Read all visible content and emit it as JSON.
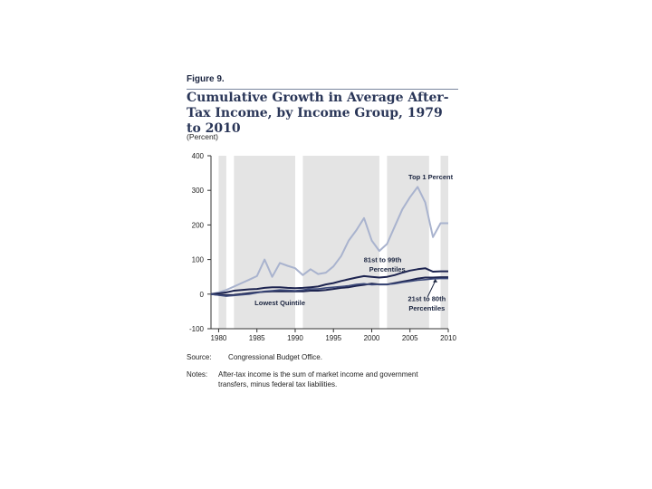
{
  "figure": {
    "label": "Figure 9.",
    "title": "Cumulative Growth in Average After-Tax Income, by Income Group, 1979 to 2010",
    "unit": "(Percent)",
    "source_label": "Source:",
    "source_text": "Congressional Budget Office.",
    "notes_label": "Notes:",
    "notes_text": "After-tax income is the sum of market income and government transfers, minus federal tax liabilities."
  },
  "colors": {
    "top1": "#a9b3ce",
    "p81_99": "#1d2450",
    "p21_80": "#1d2450",
    "lowest": "#3d4a7a",
    "recession": "#e4e4e4",
    "axis": "#333333"
  },
  "chart_data": {
    "type": "line",
    "title": "Cumulative Growth in Average After-Tax Income, by Income Group, 1979 to 2010",
    "xlabel": "",
    "ylabel": "(Percent)",
    "xlim": [
      1979,
      2010
    ],
    "ylim": [
      -100,
      400
    ],
    "x_ticks": [
      1980,
      1985,
      1990,
      1995,
      2000,
      2005,
      2010
    ],
    "y_ticks": [
      -100,
      0,
      100,
      200,
      300,
      400
    ],
    "grid": false,
    "shaded_periods": [
      [
        1980,
        1981
      ],
      [
        1982,
        1990
      ],
      [
        1991,
        2001
      ],
      [
        2002,
        2007.5
      ],
      [
        2009,
        2010
      ]
    ],
    "x": [
      1979,
      1980,
      1981,
      1982,
      1983,
      1984,
      1985,
      1986,
      1987,
      1988,
      1989,
      1990,
      1991,
      1992,
      1993,
      1994,
      1995,
      1996,
      1997,
      1998,
      1999,
      2000,
      2001,
      2002,
      2003,
      2004,
      2005,
      2006,
      2007,
      2008,
      2009,
      2010
    ],
    "series": [
      {
        "name": "Top 1 Percent",
        "color_key": "top1",
        "values": [
          0,
          5,
          12,
          22,
          32,
          42,
          52,
          100,
          50,
          90,
          82,
          75,
          55,
          72,
          58,
          62,
          80,
          110,
          155,
          185,
          220,
          155,
          125,
          145,
          195,
          245,
          280,
          310,
          265,
          165,
          205,
          205
        ]
      },
      {
        "name": "81st to 99th Percentiles",
        "color_key": "p81_99",
        "values": [
          0,
          2,
          5,
          10,
          12,
          14,
          15,
          18,
          20,
          20,
          18,
          17,
          18,
          20,
          22,
          28,
          32,
          38,
          43,
          48,
          52,
          50,
          48,
          50,
          55,
          62,
          68,
          72,
          75,
          65,
          66,
          66
        ]
      },
      {
        "name": "21st to 80th Percentiles",
        "color_key": "p21_80",
        "values": [
          0,
          -2,
          -3,
          -2,
          0,
          3,
          5,
          7,
          8,
          8,
          8,
          8,
          8,
          10,
          10,
          12,
          15,
          18,
          20,
          24,
          27,
          30,
          28,
          28,
          32,
          36,
          40,
          45,
          48,
          48,
          49,
          49
        ]
      },
      {
        "name": "Lowest Quintile",
        "color_key": "lowest",
        "values": [
          0,
          -3,
          -6,
          -4,
          -2,
          0,
          4,
          8,
          10,
          12,
          11,
          10,
          12,
          15,
          15,
          18,
          20,
          22,
          24,
          28,
          30,
          27,
          28,
          28,
          30,
          34,
          37,
          40,
          42,
          44,
          45,
          45
        ]
      }
    ],
    "annotations": [
      {
        "text": "Top 1 Percent",
        "series": "Top 1 Percent"
      },
      {
        "text": "81st to 99th",
        "series": "81st to 99th Percentiles"
      },
      {
        "text": "Percentiles",
        "series": "81st to 99th Percentiles"
      },
      {
        "text": "21st to 80th",
        "series": "21st to 80th Percentiles"
      },
      {
        "text": "Percentiles",
        "series": "21st to 80th Percentiles"
      },
      {
        "text": "Lowest Quintile",
        "series": "Lowest Quintile"
      }
    ]
  }
}
